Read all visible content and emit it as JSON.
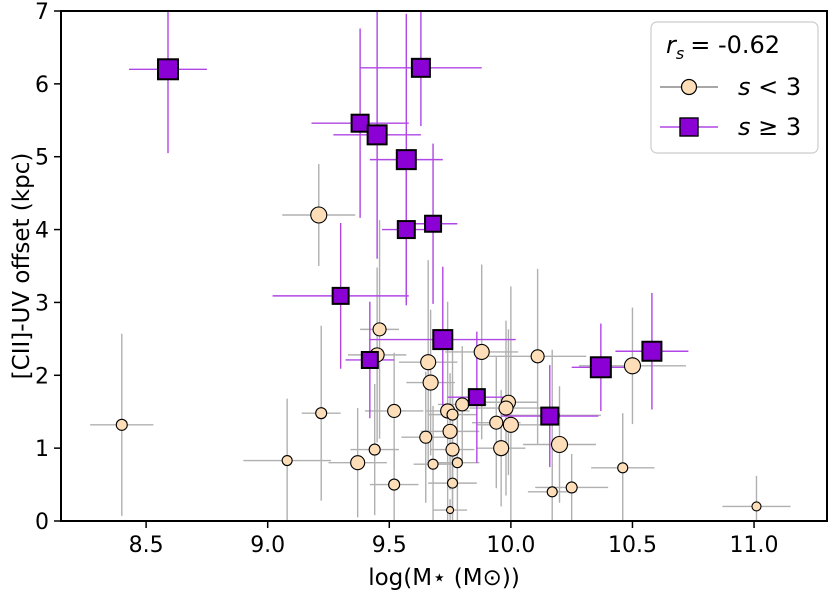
{
  "chart_data": {
    "type": "scatter",
    "title": "",
    "xlabel": "log(M⋆ (M⊙))",
    "ylabel": "[CII]-UV offset (kpc)",
    "xlim": [
      8.15,
      11.3
    ],
    "ylim": [
      0,
      7
    ],
    "xticks": [
      "8.5",
      "9.0",
      "9.5",
      "10.0",
      "10.5",
      "11.0"
    ],
    "yticks": [
      "0",
      "1",
      "2",
      "3",
      "4",
      "5",
      "6",
      "7"
    ],
    "grid": false,
    "legend": {
      "placement": "top-right",
      "stat_label": "r_s = -0.62",
      "stat_symbol": "r",
      "stat_subscript": "s",
      "stat_value": "= -0.62",
      "entries": [
        {
          "marker": "circle",
          "label_symbol": "s",
          "label_rest": " < 3"
        },
        {
          "marker": "square",
          "label_symbol": "s",
          "label_rest": " ≥ 3"
        }
      ]
    },
    "colors": {
      "low_fill": "#FDDEB8",
      "high_fill": "#8B00D4",
      "low_err": "#B0B0B0",
      "high_err": "#B146E6",
      "edge": "#000000"
    },
    "series": [
      {
        "name": "s < 3",
        "marker": "circle",
        "points": [
          {
            "x": 8.4,
            "y": 1.32,
            "xerr": 0.13,
            "yerr": 1.25,
            "size": 11
          },
          {
            "x": 9.08,
            "y": 0.83,
            "xerr": 0.18,
            "yerr": 0.85,
            "size": 10
          },
          {
            "x": 9.21,
            "y": 4.2,
            "xerr": 0.15,
            "yerr": 0.7,
            "size": 16
          },
          {
            "x": 9.22,
            "y": 1.48,
            "xerr": 0.08,
            "yerr": 1.2,
            "size": 11
          },
          {
            "x": 9.37,
            "y": 0.8,
            "xerr": 0.12,
            "yerr": 0.75,
            "size": 14
          },
          {
            "x": 9.45,
            "y": 2.28,
            "xerr": 0.12,
            "yerr": 1.2,
            "size": 14
          },
          {
            "x": 9.46,
            "y": 2.63,
            "xerr": 0.08,
            "yerr": 1.5,
            "size": 13
          },
          {
            "x": 9.44,
            "y": 0.98,
            "xerr": 0.1,
            "yerr": 0.9,
            "size": 11
          },
          {
            "x": 9.52,
            "y": 1.51,
            "xerr": 0.12,
            "yerr": 0.8,
            "size": 13
          },
          {
            "x": 9.52,
            "y": 0.5,
            "xerr": 0.1,
            "yerr": 0.5,
            "size": 11
          },
          {
            "x": 9.66,
            "y": 2.18,
            "xerr": 0.12,
            "yerr": 1.4,
            "size": 15
          },
          {
            "x": 9.67,
            "y": 1.9,
            "xerr": 0.1,
            "yerr": 1.0,
            "size": 15
          },
          {
            "x": 9.65,
            "y": 1.15,
            "xerr": 0.1,
            "yerr": 0.9,
            "size": 12
          },
          {
            "x": 9.68,
            "y": 0.78,
            "xerr": 0.08,
            "yerr": 0.8,
            "size": 10
          },
          {
            "x": 9.74,
            "y": 1.51,
            "xerr": 0.09,
            "yerr": 1.5,
            "size": 14
          },
          {
            "x": 9.76,
            "y": 1.46,
            "xerr": 0.1,
            "yerr": 1.0,
            "size": 11
          },
          {
            "x": 9.75,
            "y": 1.23,
            "xerr": 0.12,
            "yerr": 0.8,
            "size": 14
          },
          {
            "x": 9.76,
            "y": 0.98,
            "xerr": 0.09,
            "yerr": 0.9,
            "size": 13
          },
          {
            "x": 9.78,
            "y": 0.8,
            "xerr": 0.09,
            "yerr": 0.8,
            "size": 10
          },
          {
            "x": 9.76,
            "y": 0.52,
            "xerr": 0.1,
            "yerr": 0.52,
            "size": 10
          },
          {
            "x": 9.75,
            "y": 0.15,
            "xerr": 0.07,
            "yerr": 0.15,
            "size": 7
          },
          {
            "x": 9.8,
            "y": 1.6,
            "xerr": 0.1,
            "yerr": 0.8,
            "size": 13
          },
          {
            "x": 9.88,
            "y": 2.32,
            "xerr": 0.15,
            "yerr": 1.2,
            "size": 15
          },
          {
            "x": 9.94,
            "y": 1.35,
            "xerr": 0.1,
            "yerr": 0.9,
            "size": 13
          },
          {
            "x": 9.96,
            "y": 1.0,
            "xerr": 0.1,
            "yerr": 0.8,
            "size": 15
          },
          {
            "x": 9.99,
            "y": 1.63,
            "xerr": 0.12,
            "yerr": 1.0,
            "size": 14
          },
          {
            "x": 9.98,
            "y": 1.55,
            "xerr": 0.15,
            "yerr": 1.2,
            "size": 14
          },
          {
            "x": 10.0,
            "y": 1.32,
            "xerr": 0.14,
            "yerr": 1.9,
            "size": 15
          },
          {
            "x": 10.11,
            "y": 2.26,
            "xerr": 0.2,
            "yerr": 1.2,
            "size": 13
          },
          {
            "x": 10.17,
            "y": 1.45,
            "xerr": 0.2,
            "yerr": 0.9,
            "size": 14
          },
          {
            "x": 10.2,
            "y": 1.05,
            "xerr": 0.15,
            "yerr": 0.8,
            "size": 16
          },
          {
            "x": 10.17,
            "y": 0.4,
            "xerr": 0.1,
            "yerr": 0.4,
            "size": 10
          },
          {
            "x": 10.25,
            "y": 0.46,
            "xerr": 0.15,
            "yerr": 0.46,
            "size": 11
          },
          {
            "x": 10.46,
            "y": 0.73,
            "xerr": 0.13,
            "yerr": 0.75,
            "size": 10
          },
          {
            "x": 10.5,
            "y": 2.13,
            "xerr": 0.22,
            "yerr": 0.8,
            "size": 16
          },
          {
            "x": 11.01,
            "y": 0.2,
            "xerr": 0.14,
            "yerr": 0.42,
            "size": 9
          }
        ]
      },
      {
        "name": "s ≥ 3",
        "marker": "square",
        "points": [
          {
            "x": 8.59,
            "y": 6.2,
            "xerr": 0.16,
            "yerr": 1.15,
            "size": 20
          },
          {
            "x": 9.3,
            "y": 3.09,
            "xerr": 0.28,
            "yerr": 1.0,
            "size": 16
          },
          {
            "x": 9.38,
            "y": 5.46,
            "xerr": 0.2,
            "yerr": 1.3,
            "size": 17
          },
          {
            "x": 9.42,
            "y": 2.21,
            "xerr": 0.1,
            "yerr": 0.8,
            "size": 16
          },
          {
            "x": 9.45,
            "y": 5.3,
            "xerr": 0.18,
            "yerr": 1.7,
            "size": 19
          },
          {
            "x": 9.57,
            "y": 4.96,
            "xerr": 0.15,
            "yerr": 2.0,
            "size": 19
          },
          {
            "x": 9.57,
            "y": 4.0,
            "xerr": 0.1,
            "yerr": 1.0,
            "size": 17
          },
          {
            "x": 9.63,
            "y": 6.22,
            "xerr": 0.25,
            "yerr": 0.8,
            "size": 18
          },
          {
            "x": 9.68,
            "y": 4.08,
            "xerr": 0.1,
            "yerr": 1.1,
            "size": 16
          },
          {
            "x": 9.72,
            "y": 2.49,
            "xerr": 0.3,
            "yerr": 1.0,
            "size": 19
          },
          {
            "x": 9.86,
            "y": 1.7,
            "xerr": 0.12,
            "yerr": 0.9,
            "size": 16
          },
          {
            "x": 10.16,
            "y": 1.44,
            "xerr": 0.2,
            "yerr": 0.7,
            "size": 17
          },
          {
            "x": 10.37,
            "y": 2.11,
            "xerr": 0.12,
            "yerr": 0.6,
            "size": 20
          },
          {
            "x": 10.58,
            "y": 2.33,
            "xerr": 0.15,
            "yerr": 0.8,
            "size": 19
          }
        ]
      }
    ]
  }
}
